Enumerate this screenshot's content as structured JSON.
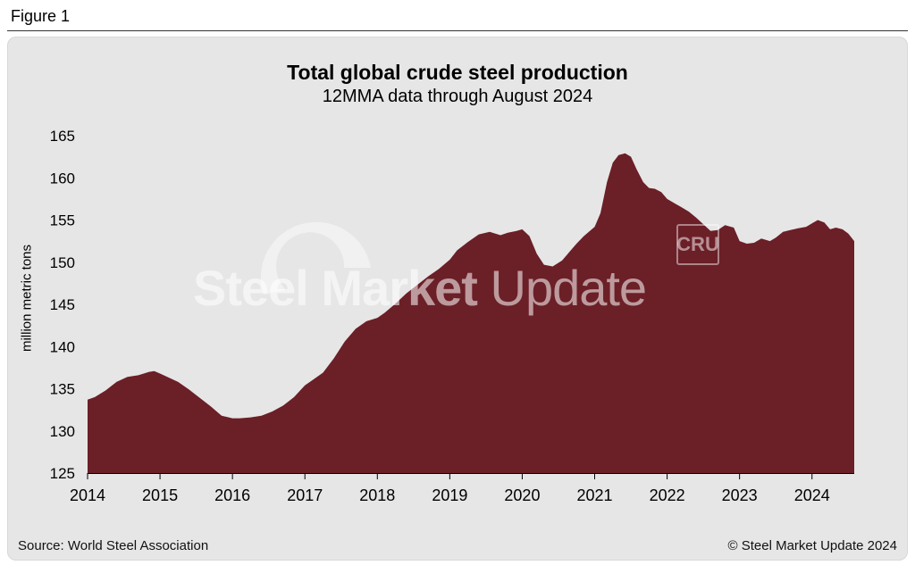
{
  "figure_label": "Figure 1",
  "source": "Source: World Steel Association",
  "copyright": "© Steel Market Update 2024",
  "watermark": {
    "bold": "Steel Market",
    "light": " Update",
    "badge": "CRU"
  },
  "colors": {
    "fill": "#6b1f27",
    "panel": "#e6e6e6"
  },
  "chart_data": {
    "type": "area",
    "title": "Total global crude steel production",
    "subtitle": "12MMA data through August 2024",
    "xlabel": "",
    "ylabel": "million metric tons",
    "xlim": [
      2014.0,
      2024.583
    ],
    "ylim": [
      125,
      165
    ],
    "yticks": [
      125,
      130,
      135,
      140,
      145,
      150,
      155,
      160,
      165
    ],
    "xticks": [
      2014,
      2015,
      2016,
      2017,
      2018,
      2019,
      2020,
      2021,
      2022,
      2023,
      2024
    ],
    "grid": false,
    "series": [
      {
        "name": "Total global crude steel production (12MMA)",
        "x": [
          2014.0,
          2014.1,
          2014.25,
          2014.4,
          2014.55,
          2014.7,
          2014.85,
          2014.92,
          2015.0,
          2015.1,
          2015.25,
          2015.4,
          2015.55,
          2015.7,
          2015.85,
          2016.0,
          2016.1,
          2016.25,
          2016.4,
          2016.55,
          2016.7,
          2016.85,
          2017.0,
          2017.1,
          2017.25,
          2017.4,
          2017.55,
          2017.7,
          2017.85,
          2018.0,
          2018.1,
          2018.25,
          2018.4,
          2018.55,
          2018.7,
          2018.85,
          2019.0,
          2019.1,
          2019.25,
          2019.4,
          2019.55,
          2019.7,
          2019.8,
          2019.92,
          2020.0,
          2020.1,
          2020.2,
          2020.3,
          2020.42,
          2020.55,
          2020.65,
          2020.75,
          2020.85,
          2021.0,
          2021.08,
          2021.17,
          2021.25,
          2021.33,
          2021.42,
          2021.5,
          2021.58,
          2021.67,
          2021.75,
          2021.83,
          2021.92,
          2022.0,
          2022.1,
          2022.2,
          2022.3,
          2022.4,
          2022.5,
          2022.6,
          2022.7,
          2022.8,
          2022.92,
          2023.0,
          2023.1,
          2023.2,
          2023.3,
          2023.42,
          2023.5,
          2023.6,
          2023.7,
          2023.8,
          2023.92,
          2024.0,
          2024.08,
          2024.17,
          2024.25,
          2024.33,
          2024.42,
          2024.5,
          2024.583
        ],
        "values": [
          133.7,
          134.0,
          134.8,
          135.8,
          136.4,
          136.6,
          137.0,
          137.1,
          136.8,
          136.4,
          135.8,
          134.9,
          133.9,
          132.9,
          131.8,
          131.5,
          131.5,
          131.6,
          131.8,
          132.3,
          133.0,
          134.0,
          135.4,
          136.0,
          136.9,
          138.6,
          140.6,
          142.1,
          143.0,
          143.4,
          144.0,
          145.1,
          146.3,
          147.3,
          148.3,
          149.2,
          150.3,
          151.4,
          152.4,
          153.3,
          153.6,
          153.2,
          153.5,
          153.7,
          153.9,
          153.1,
          151.0,
          149.7,
          149.5,
          150.2,
          151.2,
          152.2,
          153.1,
          154.2,
          155.8,
          159.5,
          161.8,
          162.7,
          162.9,
          162.5,
          161.0,
          159.5,
          158.8,
          158.7,
          158.3,
          157.5,
          157.0,
          156.5,
          156.0,
          155.3,
          154.5,
          153.7,
          153.8,
          154.4,
          154.1,
          152.5,
          152.2,
          152.3,
          152.8,
          152.5,
          152.9,
          153.6,
          153.8,
          154.0,
          154.2,
          154.6,
          155.0,
          154.7,
          153.9,
          154.1,
          153.9,
          153.4,
          152.5
        ]
      }
    ]
  }
}
